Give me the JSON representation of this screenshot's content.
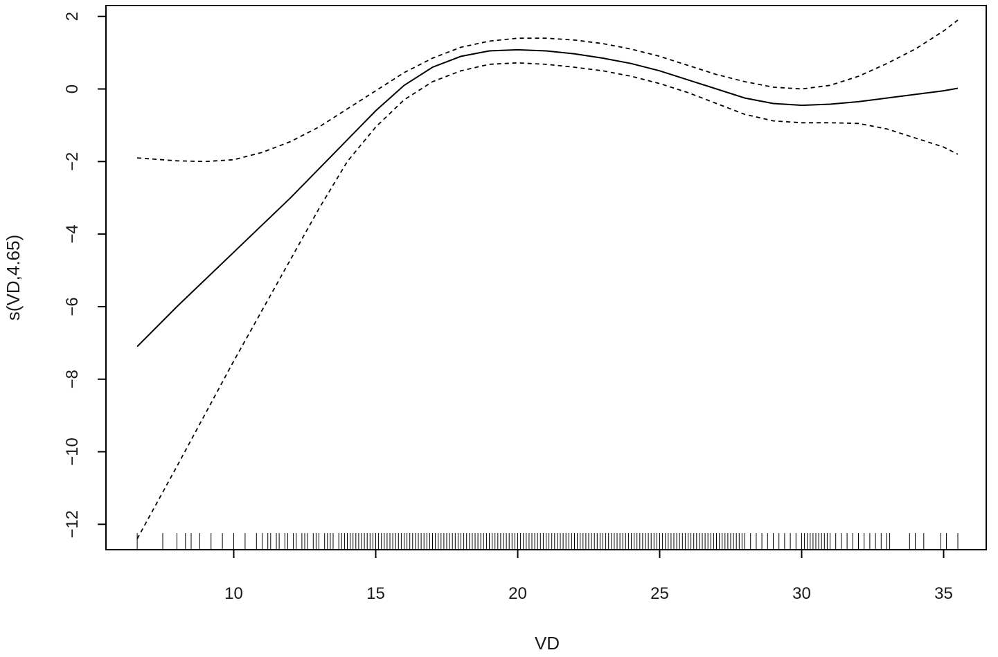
{
  "chart_data": {
    "type": "line",
    "title": "",
    "xlabel": "VD",
    "ylabel": "s(VD,4.65)",
    "xlim": [
      5.5,
      36.5
    ],
    "ylim": [
      -12.7,
      2.3
    ],
    "x_ticks": [
      10,
      15,
      20,
      25,
      30,
      35
    ],
    "y_ticks": [
      2,
      0,
      -2,
      -4,
      -6,
      -8,
      -10,
      -12
    ],
    "x_tick_labels": [
      "10",
      "15",
      "20",
      "25",
      "30",
      "35"
    ],
    "y_tick_labels": [
      "2",
      "0",
      "−2",
      "−4",
      "−6",
      "−8",
      "−10",
      "−12"
    ],
    "grid": false,
    "series": [
      {
        "style": "solid",
        "x": [
          6.6,
          8,
          10,
          12,
          13,
          14,
          15,
          16,
          17,
          18,
          19,
          20,
          21,
          22,
          23,
          24,
          25,
          26,
          27,
          28,
          29,
          30,
          31,
          32,
          33,
          34,
          35,
          35.5
        ],
        "y": [
          -7.1,
          -6.0,
          -4.5,
          -3.0,
          -2.2,
          -1.4,
          -0.6,
          0.1,
          0.6,
          0.9,
          1.05,
          1.08,
          1.05,
          0.97,
          0.85,
          0.7,
          0.5,
          0.25,
          0.0,
          -0.25,
          -0.4,
          -0.45,
          -0.42,
          -0.35,
          -0.25,
          -0.15,
          -0.05,
          0.02
        ]
      },
      {
        "style": "dashed",
        "x": [
          6.6,
          8,
          9,
          10,
          11,
          12,
          13,
          14,
          15,
          16,
          17,
          18,
          19,
          20,
          21,
          22,
          23,
          24,
          25,
          26,
          27,
          28,
          29,
          30,
          31,
          32,
          33,
          34,
          35,
          35.5
        ],
        "y": [
          -1.9,
          -1.98,
          -2.0,
          -1.95,
          -1.75,
          -1.45,
          -1.05,
          -0.55,
          -0.05,
          0.45,
          0.85,
          1.15,
          1.32,
          1.4,
          1.4,
          1.35,
          1.25,
          1.1,
          0.9,
          0.65,
          0.4,
          0.2,
          0.05,
          0.0,
          0.1,
          0.35,
          0.7,
          1.1,
          1.6,
          1.9
        ]
      },
      {
        "style": "dashed",
        "x": [
          6.6,
          8,
          10,
          12,
          13,
          14,
          15,
          16,
          17,
          18,
          19,
          20,
          21,
          22,
          23,
          24,
          25,
          26,
          27,
          28,
          29,
          30,
          31,
          32,
          33,
          34,
          35,
          35.5
        ],
        "y": [
          -12.4,
          -10.4,
          -7.5,
          -4.7,
          -3.3,
          -2.0,
          -1.05,
          -0.3,
          0.2,
          0.5,
          0.68,
          0.72,
          0.68,
          0.6,
          0.5,
          0.35,
          0.15,
          -0.1,
          -0.4,
          -0.7,
          -0.88,
          -0.93,
          -0.93,
          -0.95,
          -1.1,
          -1.35,
          -1.6,
          -1.8
        ]
      }
    ],
    "rug": [
      6.6,
      7.5,
      8.0,
      8.3,
      8.5,
      8.8,
      9.2,
      9.6,
      10.0,
      10.4,
      10.8,
      11.0,
      11.2,
      11.3,
      11.5,
      11.6,
      11.8,
      11.9,
      12.1,
      12.2,
      12.4,
      12.5,
      12.6,
      12.8,
      12.9,
      13.0,
      13.2,
      13.3,
      13.4,
      13.5,
      13.7,
      13.8,
      13.9,
      14.0,
      14.1,
      14.2,
      14.3,
      14.4,
      14.5,
      14.6,
      14.7,
      14.8,
      14.9,
      15.0,
      15.1,
      15.2,
      15.3,
      15.4,
      15.5,
      15.6,
      15.7,
      15.8,
      15.9,
      16.0,
      16.1,
      16.2,
      16.3,
      16.4,
      16.5,
      16.6,
      16.7,
      16.8,
      16.9,
      17.0,
      17.1,
      17.2,
      17.3,
      17.4,
      17.5,
      17.6,
      17.7,
      17.8,
      17.9,
      18.0,
      18.1,
      18.2,
      18.3,
      18.4,
      18.5,
      18.6,
      18.7,
      18.8,
      18.9,
      19.0,
      19.1,
      19.2,
      19.3,
      19.4,
      19.5,
      19.6,
      19.7,
      19.8,
      19.9,
      20.0,
      20.1,
      20.2,
      20.3,
      20.4,
      20.5,
      20.6,
      20.7,
      20.8,
      20.9,
      21.0,
      21.1,
      21.2,
      21.3,
      21.4,
      21.5,
      21.6,
      21.7,
      21.8,
      21.9,
      22.0,
      22.1,
      22.2,
      22.3,
      22.4,
      22.5,
      22.6,
      22.7,
      22.8,
      22.9,
      23.0,
      23.1,
      23.2,
      23.3,
      23.4,
      23.5,
      23.6,
      23.7,
      23.8,
      23.9,
      24.0,
      24.1,
      24.2,
      24.3,
      24.4,
      24.5,
      24.6,
      24.7,
      24.8,
      24.9,
      25.0,
      25.1,
      25.2,
      25.3,
      25.4,
      25.5,
      25.6,
      25.7,
      25.8,
      25.9,
      26.0,
      26.1,
      26.2,
      26.3,
      26.4,
      26.5,
      26.6,
      26.7,
      26.8,
      26.9,
      27.0,
      27.1,
      27.2,
      27.3,
      27.4,
      27.5,
      27.6,
      27.7,
      27.8,
      27.9,
      28.0,
      28.2,
      28.4,
      28.6,
      28.8,
      29.0,
      29.2,
      29.4,
      29.6,
      29.8,
      30.0,
      30.1,
      30.2,
      30.3,
      30.4,
      30.5,
      30.6,
      30.7,
      30.8,
      30.9,
      31.0,
      31.2,
      31.4,
      31.6,
      31.8,
      32.0,
      32.2,
      32.4,
      32.6,
      32.8,
      33.0,
      33.1,
      33.8,
      34.0,
      34.3,
      34.9,
      35.1,
      35.5
    ]
  }
}
